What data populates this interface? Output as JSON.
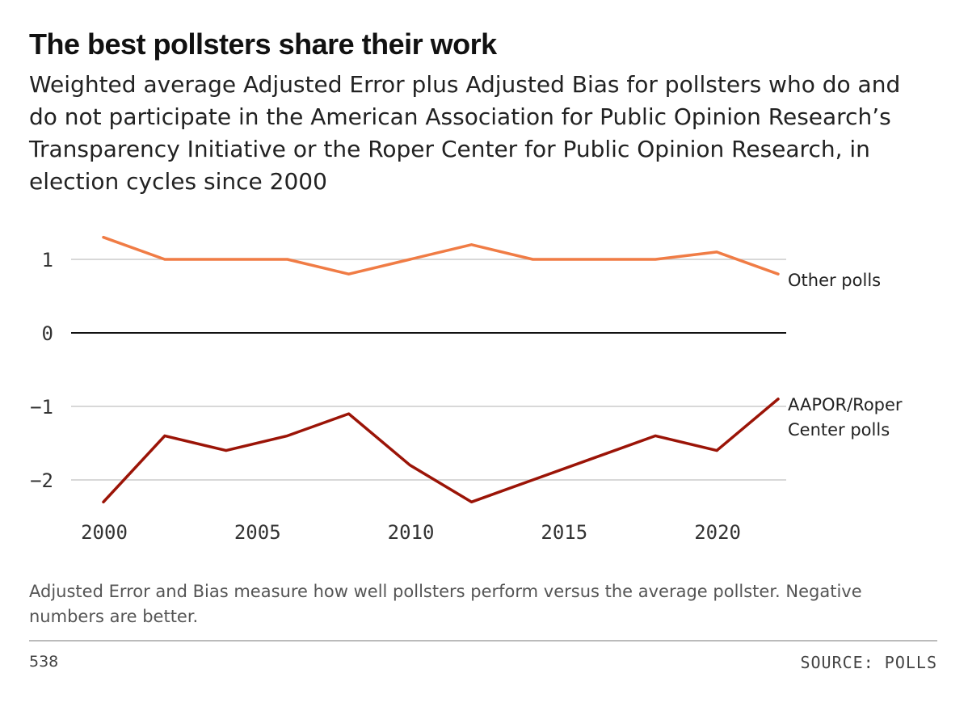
{
  "title": "The best pollsters share their work",
  "subtitle": "Weighted average Adjusted Error plus Adjusted Bias for pollsters who do and do not participate in the American Association for Public Opinion Research’s Transparency Initiative or the Roper Center for Public Opinion Research, in election cycles since 2000",
  "note": "Adjusted Error and Bias measure how well pollsters perform versus the average pollster. Negative numbers are better.",
  "footer": {
    "brand": "538",
    "source": "SOURCE: POLLS"
  },
  "colors": {
    "other": "#f07c45",
    "aapor": "#9b1407",
    "grid": "#cccccc",
    "zero": "#111111"
  },
  "chart_data": {
    "type": "line",
    "title": "The best pollsters share their work",
    "xlabel": "",
    "ylabel": "",
    "xlim": [
      2000,
      2022
    ],
    "ylim": [
      -2.3,
      1.3
    ],
    "grid": true,
    "x_ticks": [
      2000,
      2005,
      2010,
      2015,
      2020
    ],
    "x_tick_labels": [
      "2000",
      "2005",
      "2010",
      "2015",
      "2020"
    ],
    "y_ticks": [
      1,
      0,
      -1,
      -2
    ],
    "y_tick_labels": [
      "1",
      "0",
      "−1",
      "−2"
    ],
    "x": [
      2000,
      2002,
      2004,
      2006,
      2008,
      2010,
      2012,
      2014,
      2016,
      2018,
      2020,
      2022
    ],
    "series": [
      {
        "name": "Other polls",
        "label_lines": [
          "Other polls"
        ],
        "color": "#f07c45",
        "values": [
          1.3,
          1.0,
          1.0,
          1.0,
          0.8,
          1.0,
          1.2,
          1.0,
          1.0,
          1.0,
          1.1,
          0.8
        ]
      },
      {
        "name": "AAPOR/Roper Center polls",
        "label_lines": [
          "AAPOR/Roper",
          "Center polls"
        ],
        "color": "#9b1407",
        "values": [
          -2.3,
          -1.4,
          -1.6,
          -1.4,
          -1.1,
          -1.8,
          -2.3,
          -2.0,
          -1.7,
          -1.4,
          -1.6,
          -0.9
        ]
      }
    ]
  }
}
